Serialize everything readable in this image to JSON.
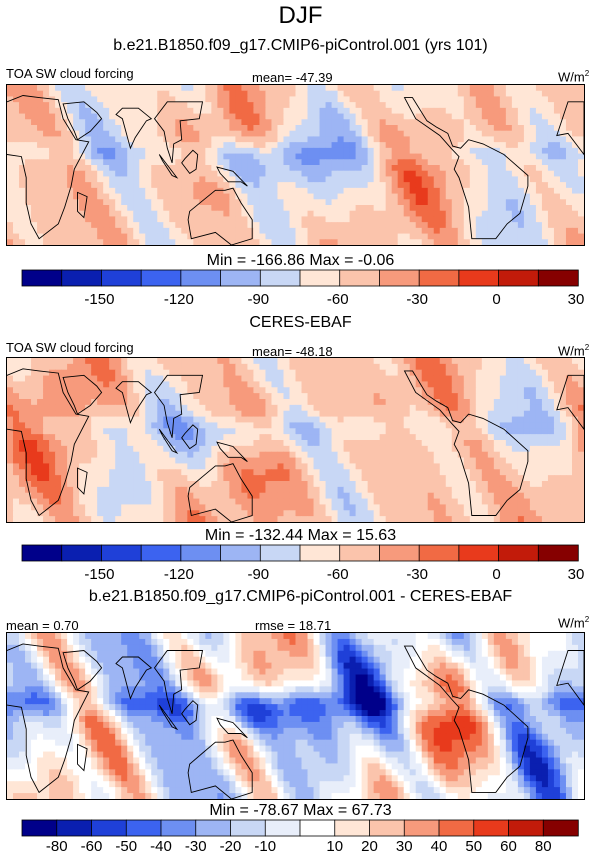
{
  "figure": {
    "title": "DJF"
  },
  "panels": [
    {
      "id": "model",
      "heading": "b.e21.B1850.f09_g17.CMIP6-piControl.001 (yrs 101)",
      "left_label": "TOA SW cloud forcing",
      "center_label": "mean= -47.39",
      "units": "W/m",
      "units_sup": "2",
      "minmax": "Min = -166.86 Max =  -0.06",
      "seed": 7,
      "bias": 0.15
    },
    {
      "id": "obs",
      "heading": "CERES-EBAF",
      "left_label": "TOA SW cloud forcing",
      "center_label": "mean= -48.18",
      "units": "W/m",
      "units_sup": "2",
      "minmax": "Min = -132.44 Max =  15.63",
      "seed": 19,
      "bias": 0.25
    },
    {
      "id": "diff",
      "heading": "b.e21.B1850.f09_g17.CMIP6-piControl.001 - CERES-EBAF",
      "left_label": "mean =   0.70",
      "center_label": "rmse =  18.71",
      "units": "W/m",
      "units_sup": "2",
      "minmax": "Min = -78.67 Max =  67.73",
      "seed": 31,
      "bias": 0.0
    }
  ],
  "chart_data": [
    {
      "type": "heatmap",
      "title": "TOA SW cloud forcing",
      "colorbar_levels": [
        -170,
        -160,
        -150,
        -140,
        -130,
        -120,
        -110,
        -100,
        -90,
        -80,
        -70,
        -60,
        -50,
        -40,
        -30,
        -20,
        -10,
        0,
        10,
        20,
        30,
        40,
        50
      ],
      "colorbar_tick_labels": [
        "-150",
        "-120",
        "-90",
        "-60",
        "-30",
        "0",
        "30"
      ],
      "colorbar_tick_values": [
        -150,
        -120,
        -90,
        -60,
        -30,
        0,
        30
      ],
      "colorbar_range": [
        -170,
        50
      ],
      "colors": [
        "#00008a",
        "#0a1fb0",
        "#1f40d8",
        "#3c63f0",
        "#6d8ff2",
        "#9db5f4",
        "#c8d7f5",
        "#ffe6d6",
        "#fbc4ac",
        "#f79a7c",
        "#f16a44",
        "#e83a1c",
        "#c21b0a",
        "#860000"
      ],
      "mean": -47.39,
      "min": -166.86,
      "max": -0.06,
      "units": "W/m2"
    },
    {
      "type": "heatmap",
      "title": "TOA SW cloud forcing",
      "colorbar_tick_labels": [
        "-150",
        "-120",
        "-90",
        "-60",
        "-30",
        "0",
        "30"
      ],
      "colorbar_tick_values": [
        -150,
        -120,
        -90,
        -60,
        -30,
        0,
        30
      ],
      "colorbar_range": [
        -170,
        50
      ],
      "mean": -48.18,
      "min": -132.44,
      "max": 15.63,
      "units": "W/m2"
    },
    {
      "type": "heatmap",
      "title": "",
      "colorbar_tick_labels": [
        "-80",
        "-60",
        "-50",
        "-40",
        "-30",
        "-20",
        "-10",
        "10",
        "20",
        "30",
        "40",
        "50",
        "60",
        "80"
      ],
      "colorbar_bins": 16,
      "colors": [
        "#00008a",
        "#0a1fb0",
        "#1f40d8",
        "#3c63f0",
        "#6d8ff2",
        "#9db5f4",
        "#c8d7f5",
        "#e8eefa",
        "#ffffff",
        "#ffe6d6",
        "#fbc4ac",
        "#f79a7c",
        "#f16a44",
        "#e83a1c",
        "#c21b0a",
        "#860000"
      ],
      "mean": 0.7,
      "rmse": 18.71,
      "min": -78.67,
      "max": 67.73,
      "units": "W/m2"
    }
  ]
}
